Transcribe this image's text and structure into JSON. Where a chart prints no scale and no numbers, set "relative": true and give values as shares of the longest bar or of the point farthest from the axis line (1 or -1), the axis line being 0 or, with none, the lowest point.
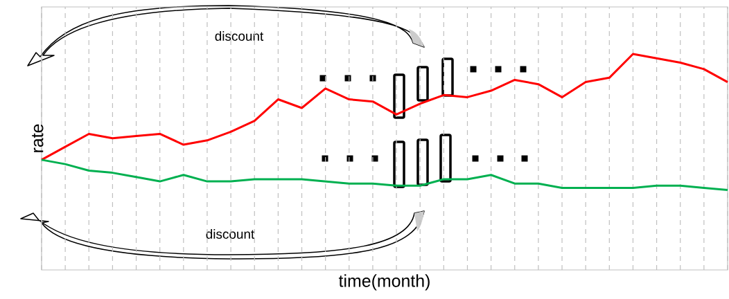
{
  "chart_data": {
    "type": "line",
    "relative": true,
    "xlabel": "time(month)",
    "ylabel": "rate",
    "categories": [
      null,
      null,
      null,
      null,
      null,
      null,
      null,
      null,
      null,
      null,
      null,
      null,
      null,
      null,
      null,
      null,
      null,
      null,
      null,
      null,
      null,
      null,
      null,
      null,
      null,
      null,
      null,
      null,
      null,
      null
    ],
    "series": [
      {
        "color": "#ff0000",
        "values": [
          0.51,
          0.57,
          0.63,
          0.61,
          0.62,
          0.63,
          0.58,
          0.6,
          0.64,
          0.69,
          0.79,
          0.75,
          0.84,
          0.79,
          0.78,
          0.72,
          0.77,
          0.81,
          0.8,
          0.83,
          0.88,
          0.86,
          0.8,
          0.87,
          0.89,
          1.0,
          0.98,
          0.96,
          0.93,
          0.87
        ]
      },
      {
        "color": "#00b050",
        "values": [
          0.51,
          0.49,
          0.46,
          0.45,
          0.43,
          0.41,
          0.44,
          0.41,
          0.41,
          0.42,
          0.42,
          0.42,
          0.41,
          0.4,
          0.4,
          0.39,
          0.39,
          0.42,
          0.42,
          0.44,
          0.4,
          0.4,
          0.38,
          0.38,
          0.38,
          0.38,
          0.39,
          0.39,
          0.38,
          0.37
        ]
      }
    ],
    "annotations": [
      "discount",
      "discount"
    ],
    "grid": "x",
    "marker": "none",
    "line_style": "solid"
  }
}
